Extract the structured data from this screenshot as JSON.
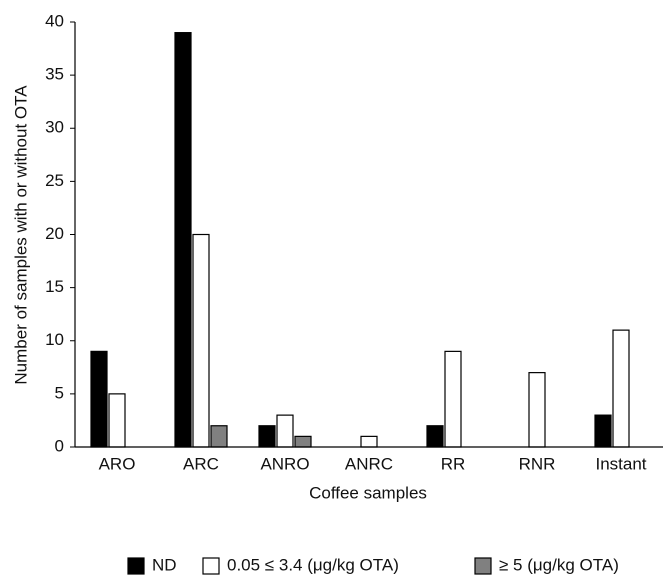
{
  "chart_data": {
    "type": "bar",
    "x_label": "Coffee samples",
    "y_label": "Number of samples with or without OTA",
    "categories": [
      "ARO",
      "ARC",
      "ANRO",
      "ANRC",
      "RR",
      "RNR",
      "Instant"
    ],
    "series": [
      {
        "name": "ND",
        "color": "#000000",
        "values": [
          9,
          39,
          2,
          0,
          2,
          0,
          3
        ]
      },
      {
        "name": "0.05 ≤ 3.4 (μg/kg OTA)",
        "color": "#ffffff",
        "values": [
          5,
          20,
          3,
          1,
          9,
          7,
          11
        ]
      },
      {
        "name": "≥ 5 (μg/kg OTA)",
        "color": "#808080",
        "values": [
          0,
          2,
          1,
          0,
          0,
          0,
          0
        ]
      }
    ],
    "ylim": [
      0,
      40
    ],
    "yticks": [
      0,
      5,
      10,
      15,
      20,
      25,
      30,
      35,
      40
    ],
    "grid": false,
    "legend": "bottom"
  }
}
